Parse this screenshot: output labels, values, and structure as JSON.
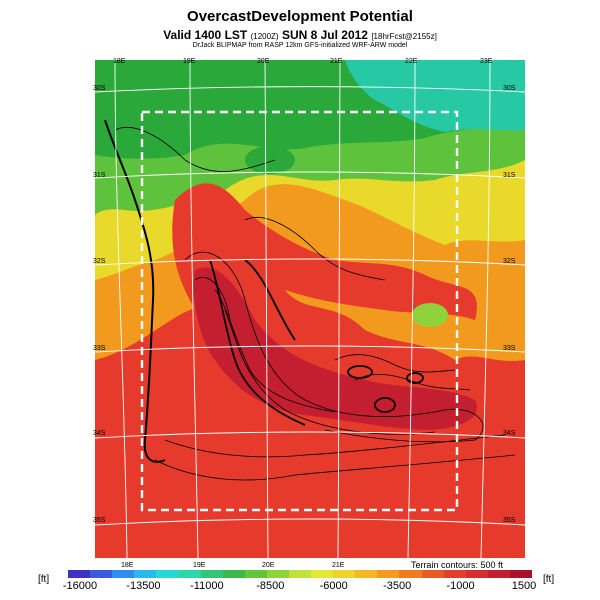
{
  "header": {
    "title": "OvercastDevelopment Potential",
    "valid_main": "Valid 1400 LST",
    "valid_code": "(1200Z)",
    "valid_date": "SUN 8 Jul 2012",
    "valid_fcst": "[18hrFcst@2155z]",
    "source": "DrJack BLIPMAP from RASP 12km GFS-initialized WRF-ARW model"
  },
  "map": {
    "lon_labels_top": [
      "18E",
      "19E",
      "20E",
      "21E",
      "22E",
      "23E"
    ],
    "lon_labels_bottom": [
      "18E",
      "19E",
      "20E",
      "21E"
    ],
    "lat_labels_left": [
      "30S",
      "31S",
      "32S",
      "33S",
      "34S",
      "35S"
    ],
    "lat_labels_right": [
      "30S",
      "31S",
      "32S",
      "33S",
      "34S",
      "35S"
    ],
    "terrain_note": "Terrain contours: 500 ft",
    "colors": {
      "green_dark": "#2aa83a",
      "green": "#5fc23d",
      "teal": "#27c9a4",
      "yellow": "#e9d92a",
      "orange": "#f29a1e",
      "red": "#e63a2c",
      "dark_red": "#c41f30",
      "box_dash": "#ffffff"
    }
  },
  "colorbar": {
    "unit_left": "[ft]",
    "unit_right": "[ft]",
    "ticks": [
      "-16000",
      "-13500",
      "-11000",
      "-8500",
      "-6000",
      "-3500",
      "-1000",
      "1500"
    ],
    "colors": [
      "#3b34c0",
      "#3a5ae0",
      "#2e8ef0",
      "#29b9ee",
      "#27d9d4",
      "#2ed7a8",
      "#35c57a",
      "#3fb84a",
      "#62c63b",
      "#8fd33b",
      "#bfe23b",
      "#e4e834",
      "#f0d22c",
      "#f4b825",
      "#f39a1f",
      "#f07c20",
      "#ea5a26",
      "#e3402c",
      "#d62e30",
      "#c41f30",
      "#a8122c"
    ]
  }
}
